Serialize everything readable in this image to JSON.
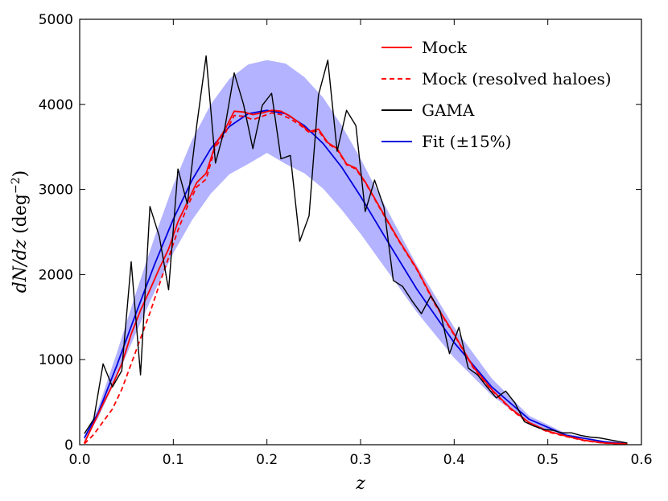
{
  "chart_data": {
    "type": "line",
    "title": "",
    "xlabel": "z",
    "ylabel": "dN/dz (deg⁻²)",
    "xlim": [
      0.0,
      0.6
    ],
    "ylim": [
      0,
      5000
    ],
    "xticks": [
      0.0,
      0.1,
      0.2,
      0.3,
      0.4,
      0.5,
      0.6
    ],
    "yticks": [
      0,
      1000,
      2000,
      3000,
      4000,
      5000
    ],
    "xtick_labels": [
      "0.0",
      "0.1",
      "0.2",
      "0.3",
      "0.4",
      "0.5",
      "0.6"
    ],
    "ytick_labels": [
      "0",
      "1000",
      "2000",
      "3000",
      "4000",
      "5000"
    ],
    "grid": false,
    "legend_position": "top-right",
    "band": {
      "name": "Fit (±15%) band",
      "color": "#b3b3ff",
      "x": [
        0.005,
        0.02,
        0.04,
        0.06,
        0.08,
        0.1,
        0.12,
        0.14,
        0.16,
        0.18,
        0.2,
        0.22,
        0.24,
        0.26,
        0.28,
        0.3,
        0.33,
        0.36,
        0.4,
        0.44,
        0.48,
        0.52,
        0.56,
        0.585
      ],
      "upper": [
        100,
        440,
        1090,
        1780,
        2440,
        3050,
        3580,
        4000,
        4300,
        4470,
        4520,
        4480,
        4320,
        4080,
        3750,
        3360,
        2730,
        2110,
        1380,
        780,
        340,
        130,
        40,
        10
      ],
      "lower": [
        50,
        320,
        800,
        1310,
        1800,
        2250,
        2640,
        2950,
        3180,
        3300,
        3430,
        3300,
        3190,
        3010,
        2760,
        2480,
        2020,
        1560,
        1020,
        580,
        250,
        100,
        30,
        8
      ]
    },
    "series": [
      {
        "name": "Fit",
        "legend": "Fit (±15%)",
        "color": "#0000dd",
        "dash": "solid",
        "x": [
          0.005,
          0.02,
          0.04,
          0.06,
          0.08,
          0.1,
          0.12,
          0.14,
          0.16,
          0.18,
          0.2,
          0.22,
          0.24,
          0.26,
          0.28,
          0.3,
          0.33,
          0.36,
          0.4,
          0.44,
          0.48,
          0.52,
          0.56,
          0.585
        ],
        "y": [
          80,
          380,
          940,
          1540,
          2120,
          2650,
          3110,
          3480,
          3740,
          3890,
          3930,
          3890,
          3750,
          3540,
          3260,
          2920,
          2370,
          1830,
          1200,
          680,
          300,
          110,
          35,
          10
        ]
      },
      {
        "name": "Mock",
        "legend": "Mock",
        "color": "#ff0000",
        "dash": "solid",
        "x": [
          0.005,
          0.015,
          0.025,
          0.035,
          0.045,
          0.055,
          0.065,
          0.075,
          0.085,
          0.095,
          0.105,
          0.115,
          0.125,
          0.135,
          0.145,
          0.155,
          0.165,
          0.175,
          0.185,
          0.195,
          0.205,
          0.215,
          0.225,
          0.235,
          0.245,
          0.255,
          0.265,
          0.275,
          0.285,
          0.295,
          0.305,
          0.32,
          0.34,
          0.36,
          0.38,
          0.4,
          0.42,
          0.44,
          0.46,
          0.48,
          0.5,
          0.52,
          0.54,
          0.56,
          0.585
        ],
        "y": [
          20,
          250,
          480,
          700,
          950,
          1300,
          1580,
          1820,
          2070,
          2300,
          2620,
          2850,
          3080,
          3190,
          3530,
          3700,
          3920,
          3910,
          3880,
          3900,
          3930,
          3920,
          3860,
          3780,
          3680,
          3710,
          3550,
          3480,
          3300,
          3250,
          3090,
          2800,
          2420,
          2070,
          1650,
          1300,
          920,
          650,
          430,
          260,
          160,
          100,
          50,
          20,
          10
        ]
      },
      {
        "name": "Mock (resolved haloes)",
        "legend": "Mock (resolved haloes)",
        "color": "#ff0000",
        "dash": "dashed",
        "x": [
          0.005,
          0.015,
          0.025,
          0.035,
          0.045,
          0.055,
          0.065,
          0.075,
          0.085,
          0.095,
          0.105,
          0.115,
          0.125,
          0.135,
          0.145,
          0.155,
          0.165,
          0.175,
          0.185,
          0.195,
          0.205,
          0.215,
          0.225,
          0.235,
          0.245,
          0.255,
          0.265,
          0.275,
          0.285,
          0.295,
          0.305,
          0.32,
          0.34,
          0.36,
          0.38,
          0.4,
          0.42,
          0.44,
          0.46,
          0.48,
          0.5,
          0.52,
          0.54,
          0.56,
          0.585
        ],
        "y": [
          10,
          120,
          270,
          420,
          650,
          950,
          1250,
          1550,
          1880,
          2200,
          2520,
          2800,
          3030,
          3120,
          3500,
          3650,
          3870,
          3860,
          3820,
          3860,
          3900,
          3880,
          3830,
          3760,
          3670,
          3690,
          3540,
          3470,
          3290,
          3240,
          3080,
          2790,
          2410,
          2060,
          1640,
          1290,
          910,
          640,
          420,
          250,
          150,
          95,
          45,
          18,
          8
        ]
      },
      {
        "name": "GAMA",
        "legend": "GAMA",
        "color": "#000000",
        "dash": "solid",
        "x": [
          0.005,
          0.015,
          0.025,
          0.035,
          0.045,
          0.055,
          0.065,
          0.075,
          0.085,
          0.095,
          0.105,
          0.115,
          0.125,
          0.135,
          0.145,
          0.155,
          0.165,
          0.175,
          0.185,
          0.195,
          0.205,
          0.215,
          0.225,
          0.235,
          0.245,
          0.255,
          0.265,
          0.275,
          0.285,
          0.295,
          0.305,
          0.315,
          0.325,
          0.335,
          0.345,
          0.355,
          0.365,
          0.375,
          0.385,
          0.395,
          0.405,
          0.415,
          0.425,
          0.435,
          0.445,
          0.455,
          0.465,
          0.475,
          0.485,
          0.495,
          0.505,
          0.515,
          0.525,
          0.535,
          0.545,
          0.555,
          0.565,
          0.575,
          0.585
        ],
        "y": [
          130,
          300,
          950,
          680,
          870,
          2150,
          820,
          2800,
          2450,
          1820,
          3240,
          2830,
          3750,
          4570,
          3310,
          3720,
          4370,
          4000,
          3480,
          3990,
          4130,
          3360,
          3400,
          2390,
          2690,
          4110,
          4520,
          3450,
          3930,
          3750,
          2740,
          3110,
          2790,
          1930,
          1860,
          1690,
          1540,
          1750,
          1570,
          1070,
          1380,
          900,
          820,
          680,
          550,
          630,
          490,
          270,
          220,
          180,
          170,
          140,
          140,
          110,
          90,
          80,
          60,
          40,
          20
        ]
      }
    ]
  }
}
